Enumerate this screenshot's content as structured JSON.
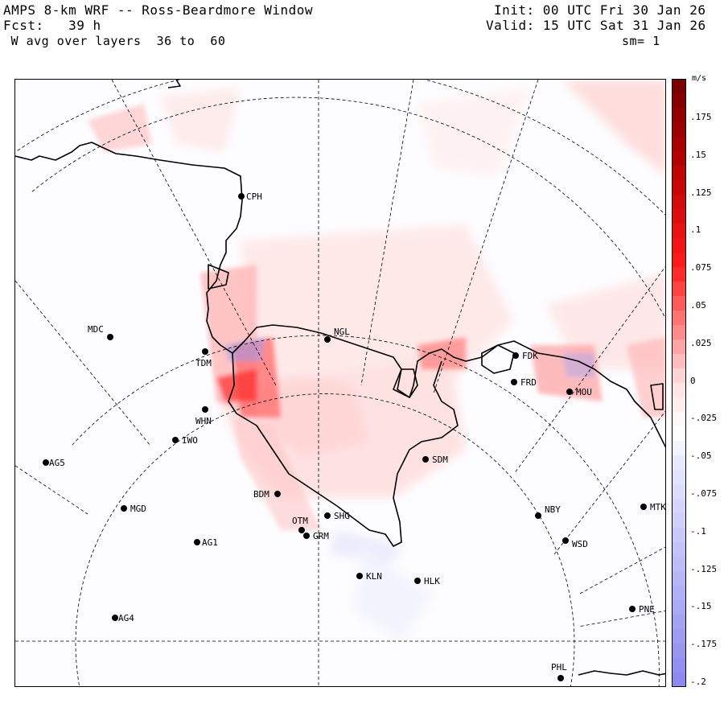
{
  "header": {
    "title": "AMPS 8-km WRF -- Ross-Beardmore Window",
    "forecast": "Fcst:   39 h",
    "variable": " W avg over layers  36 to  60",
    "init": "Init: 00 UTC Fri 30 Jan 26",
    "valid": "Valid: 15 UTC Sat 31 Jan 26",
    "smoothing": "sm= 1"
  },
  "colorbar": {
    "unit": "m/s",
    "ticks": [
      ".175",
      ".15",
      ".125",
      ".1",
      ".075",
      ".05",
      ".025",
      "0",
      "-.025",
      "-.05",
      "-.075",
      "-.1",
      "-.125",
      "-.15",
      "-.175",
      "-.2"
    ],
    "colors": {
      "max": "#7a0000",
      "positive_strong": "#ff1a1a",
      "positive_light": "#ffe0e0",
      "zero": "#ffffff",
      "negative_light": "#e8e8ff",
      "negative_strong": "#8a8af0"
    }
  },
  "stations": [
    {
      "id": "CPH"
    },
    {
      "id": "MDC"
    },
    {
      "id": "TDM"
    },
    {
      "id": "NGL"
    },
    {
      "id": "FDK"
    },
    {
      "id": "FRD"
    },
    {
      "id": "MOU"
    },
    {
      "id": "WHN"
    },
    {
      "id": "IWO"
    },
    {
      "id": "AG5"
    },
    {
      "id": "SDM"
    },
    {
      "id": "BDM"
    },
    {
      "id": "MGD"
    },
    {
      "id": "SHG"
    },
    {
      "id": "OTM"
    },
    {
      "id": "GRM"
    },
    {
      "id": "NBY"
    },
    {
      "id": "MTK"
    },
    {
      "id": "AG1"
    },
    {
      "id": "WSD"
    },
    {
      "id": "KLN"
    },
    {
      "id": "HLK"
    },
    {
      "id": "AG4"
    },
    {
      "id": "PNE"
    },
    {
      "id": "PHL"
    }
  ]
}
